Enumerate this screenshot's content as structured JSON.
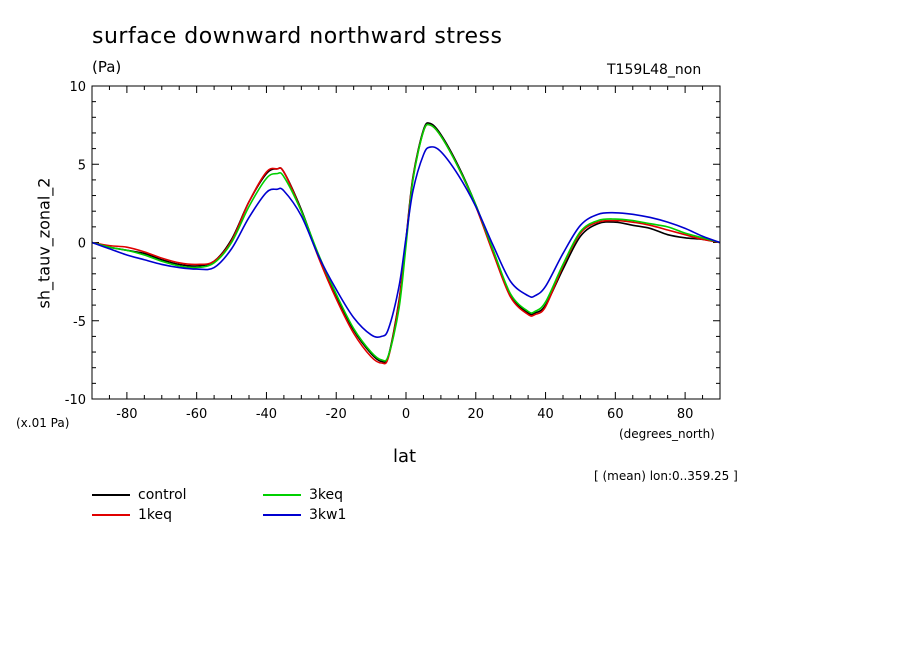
{
  "chart_data": {
    "type": "line",
    "title": "surface downward northward stress",
    "units": "(Pa)",
    "run_label": "T159L48_non",
    "ylabel": "sh_tauv_zonal_2",
    "xlabel": "lat",
    "y_scale_note": "(x.01 Pa)",
    "x_units": "(degrees_north)",
    "lon_note": "[ (mean) lon:0..359.25 ]",
    "xlim": [
      -90,
      90
    ],
    "ylim": [
      -10,
      10
    ],
    "x_ticks": [
      -80,
      -60,
      -40,
      -20,
      0,
      20,
      40,
      60,
      80
    ],
    "x_tick_labels": [
      "-80",
      "-60",
      "-40",
      "-20",
      "0",
      "20",
      "40",
      "60",
      "80"
    ],
    "y_ticks": [
      -10,
      -5,
      0,
      5,
      10
    ],
    "y_tick_labels": [
      "-10",
      "-5",
      "0",
      "5",
      "10"
    ],
    "x": [
      -90,
      -85,
      -80,
      -75,
      -70,
      -65,
      -60,
      -55,
      -50,
      -45,
      -40,
      -37,
      -35,
      -30,
      -25,
      -20,
      -15,
      -10,
      -7,
      -5,
      -2,
      0,
      2,
      5,
      7,
      10,
      15,
      20,
      25,
      30,
      35,
      37,
      40,
      45,
      50,
      55,
      60,
      65,
      70,
      75,
      80,
      85,
      90
    ],
    "series": [
      {
        "name": "control",
        "color": "#000000",
        "values": [
          0,
          -0.3,
          -0.5,
          -0.7,
          -1.1,
          -1.4,
          -1.5,
          -1.2,
          0.2,
          2.6,
          4.4,
          4.7,
          4.5,
          2.1,
          -0.9,
          -3.4,
          -5.6,
          -7.1,
          -7.6,
          -7.2,
          -3.7,
          0.2,
          4.2,
          7.2,
          7.6,
          6.9,
          4.9,
          2.4,
          -0.6,
          -3.4,
          -4.5,
          -4.5,
          -4.0,
          -1.7,
          0.4,
          1.2,
          1.3,
          1.1,
          0.9,
          0.5,
          0.3,
          0.2,
          0
        ]
      },
      {
        "name": "1keq",
        "color": "#e00000",
        "values": [
          0,
          -0.2,
          -0.3,
          -0.6,
          -1.0,
          -1.3,
          -1.4,
          -1.2,
          0.1,
          2.6,
          4.5,
          4.7,
          4.5,
          2.0,
          -1.0,
          -3.6,
          -5.8,
          -7.3,
          -7.7,
          -7.3,
          -3.8,
          0.1,
          4.1,
          7.1,
          7.5,
          6.8,
          4.8,
          2.3,
          -0.7,
          -3.5,
          -4.6,
          -4.6,
          -4.1,
          -1.5,
          0.6,
          1.3,
          1.4,
          1.3,
          1.1,
          0.8,
          0.5,
          0.2,
          0
        ]
      },
      {
        "name": "3keq",
        "color": "#00d000",
        "values": [
          0,
          -0.3,
          -0.5,
          -0.8,
          -1.2,
          -1.5,
          -1.6,
          -1.3,
          0.0,
          2.3,
          4.1,
          4.4,
          4.2,
          2.0,
          -0.8,
          -3.3,
          -5.5,
          -7.0,
          -7.5,
          -7.2,
          -4.2,
          -0.2,
          4.0,
          7.1,
          7.5,
          6.8,
          4.8,
          2.4,
          -0.5,
          -3.3,
          -4.4,
          -4.4,
          -3.8,
          -1.4,
          0.7,
          1.4,
          1.5,
          1.4,
          1.2,
          1.0,
          0.6,
          0.3,
          0
        ]
      },
      {
        "name": "3kw1",
        "color": "#0000d0",
        "values": [
          0,
          -0.4,
          -0.8,
          -1.1,
          -1.4,
          -1.6,
          -1.7,
          -1.6,
          -0.4,
          1.6,
          3.2,
          3.4,
          3.3,
          1.7,
          -0.9,
          -3.0,
          -4.8,
          -5.9,
          -6.0,
          -5.5,
          -2.8,
          0.3,
          3.3,
          5.6,
          6.1,
          5.8,
          4.3,
          2.3,
          -0.2,
          -2.5,
          -3.4,
          -3.4,
          -2.8,
          -0.7,
          1.1,
          1.8,
          1.9,
          1.8,
          1.6,
          1.3,
          0.9,
          0.4,
          0
        ]
      }
    ],
    "legend": [
      "control",
      "1keq",
      "3keq",
      "3kw1"
    ]
  }
}
